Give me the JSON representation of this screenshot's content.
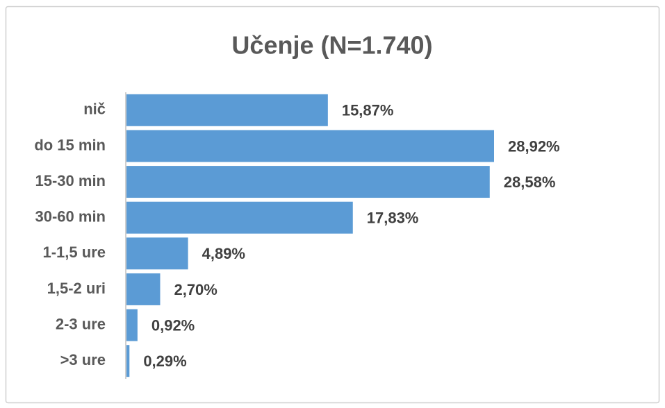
{
  "chart_data": {
    "type": "bar",
    "orientation": "horizontal",
    "title": "Učenje (N=1.740)",
    "categories": [
      "nič",
      "do 15 min",
      "15-30 min",
      "30-60 min",
      "1-1,5 ure",
      "1,5-2 uri",
      "2-3 ure",
      ">3 ure"
    ],
    "values": [
      15.87,
      28.92,
      28.58,
      17.83,
      4.89,
      2.7,
      0.92,
      0.29
    ],
    "value_labels": [
      "15,87%",
      "28,92%",
      "28,58%",
      "17,83%",
      "4,89%",
      "2,70%",
      "0,92%",
      "0,29%"
    ],
    "color": "#5b9bd5"
  }
}
